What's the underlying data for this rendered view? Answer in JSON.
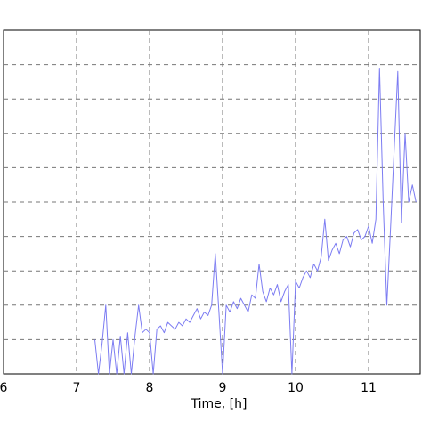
{
  "chart_data": {
    "type": "line",
    "title": "",
    "xlabel": "Time, [h]",
    "ylabel": "",
    "xlim": [
      6,
      11.8
    ],
    "ylim": [
      0,
      10
    ],
    "grid": true,
    "x_ticks": [
      "6",
      "7",
      "8",
      "9",
      "10",
      "11"
    ],
    "series": [
      {
        "color": "#7c7cf2",
        "x": [
          7.25,
          7.3,
          7.35,
          7.4,
          7.45,
          7.5,
          7.55,
          7.6,
          7.65,
          7.7,
          7.75,
          7.8,
          7.85,
          7.9,
          7.95,
          8.0,
          8.05,
          8.1,
          8.15,
          8.2,
          8.25,
          8.3,
          8.35,
          8.4,
          8.45,
          8.5,
          8.55,
          8.6,
          8.65,
          8.7,
          8.75,
          8.8,
          8.85,
          8.9,
          8.95,
          9.0,
          9.05,
          9.1,
          9.15,
          9.2,
          9.25,
          9.3,
          9.35,
          9.4,
          9.45,
          9.5,
          9.55,
          9.6,
          9.65,
          9.7,
          9.75,
          9.8,
          9.85,
          9.9,
          9.95,
          10.0,
          10.05,
          10.1,
          10.15,
          10.2,
          10.25,
          10.3,
          10.35,
          10.4,
          10.45,
          10.5,
          10.55,
          10.6,
          10.65,
          10.7,
          10.75,
          10.8,
          10.85,
          10.9,
          10.95,
          11.0,
          11.05,
          11.1,
          11.15,
          11.2,
          11.25,
          11.3,
          11.35,
          11.4,
          11.45,
          11.5,
          11.55,
          11.6,
          11.65
        ],
        "y": [
          1.0,
          0.0,
          0.9,
          2.0,
          0.0,
          1.0,
          0.0,
          1.1,
          0.0,
          1.2,
          0.0,
          1.1,
          2.0,
          1.2,
          1.3,
          1.2,
          0.0,
          1.3,
          1.4,
          1.2,
          1.5,
          1.4,
          1.3,
          1.5,
          1.4,
          1.6,
          1.5,
          1.7,
          1.9,
          1.6,
          1.8,
          1.7,
          2.0,
          3.5,
          1.8,
          0.0,
          2.0,
          1.8,
          2.1,
          1.9,
          2.2,
          2.0,
          1.8,
          2.3,
          2.2,
          3.2,
          2.4,
          2.1,
          2.5,
          2.3,
          2.6,
          2.1,
          2.4,
          2.6,
          0.0,
          2.7,
          2.5,
          2.8,
          3.0,
          2.8,
          3.2,
          3.0,
          3.4,
          4.5,
          3.3,
          3.6,
          3.8,
          3.5,
          3.9,
          4.0,
          3.7,
          4.1,
          4.2,
          3.9,
          4.0,
          4.3,
          3.8,
          4.5,
          8.9,
          5.0,
          2.0,
          4.2,
          6.5,
          8.8,
          4.4,
          7.0,
          5.0,
          5.5,
          5.0
        ]
      }
    ]
  }
}
